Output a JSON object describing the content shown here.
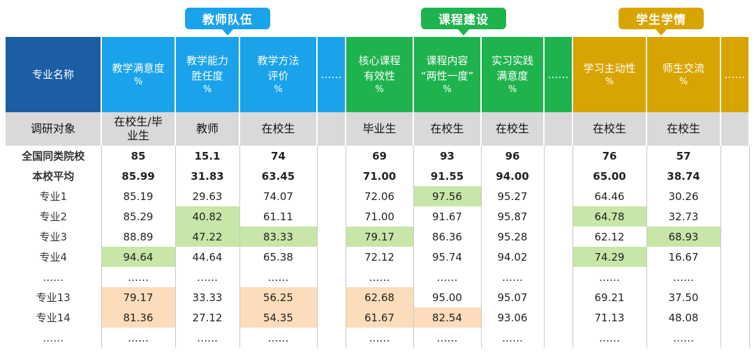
{
  "groups": [
    {
      "label": "教师队伍",
      "color": "#1aa3ea"
    },
    {
      "label": "课程建设",
      "color": "#1fb34e"
    },
    {
      "label": "学生学情",
      "color": "#d8a401"
    }
  ],
  "header": {
    "major_name": "专业名称",
    "cols": [
      {
        "l1": "教学满意度",
        "l2": "",
        "pct": "%"
      },
      {
        "l1": "教学能力",
        "l2": "胜任度",
        "pct": "%"
      },
      {
        "l1": "教学方法",
        "l2": "评价",
        "pct": "%"
      },
      {
        "l1": "……",
        "l2": "",
        "pct": ""
      },
      {
        "l1": "核心课程",
        "l2": "有效性",
        "pct": "%"
      },
      {
        "l1": "课程内容",
        "l2": "“两性一度”",
        "pct": "%"
      },
      {
        "l1": "实习实践",
        "l2": "满意度",
        "pct": "%"
      },
      {
        "l1": "……",
        "l2": "",
        "pct": ""
      },
      {
        "l1": "学习主动性",
        "l2": "",
        "pct": "%"
      },
      {
        "l1": "师生交流",
        "l2": "",
        "pct": "%"
      },
      {
        "l1": "……",
        "l2": "",
        "pct": ""
      }
    ]
  },
  "survey_row": {
    "label": "调研对象",
    "cells": [
      "在校生/毕业生",
      "教师",
      "在校生",
      "",
      "毕业生",
      "在校生",
      "在校生",
      "",
      "在校生",
      "在校生",
      ""
    ]
  },
  "rows": [
    {
      "label": "全国同类院校",
      "values": [
        "85",
        "15.1",
        "74",
        "",
        "69",
        "93",
        "96",
        "",
        "76",
        "57",
        ""
      ]
    },
    {
      "label": "本校平均",
      "values": [
        "85.99",
        "31.83",
        "63.45",
        "",
        "71.00",
        "91.55",
        "94.00",
        "",
        "65.00",
        "38.74",
        ""
      ]
    },
    {
      "label": "专业1",
      "values": [
        "85.19",
        "29.63",
        "74.07",
        "",
        "72.06",
        "97.56",
        "95.27",
        "",
        "64.46",
        "30.26",
        ""
      ]
    },
    {
      "label": "专业2",
      "values": [
        "85.29",
        "40.82",
        "61.11",
        "",
        "71.00",
        "91.67",
        "95.87",
        "",
        "64.78",
        "32.73",
        ""
      ]
    },
    {
      "label": "专业3",
      "values": [
        "88.89",
        "47.22",
        "83.33",
        "",
        "79.17",
        "86.36",
        "95.28",
        "",
        "62.12",
        "68.93",
        ""
      ]
    },
    {
      "label": "专业4",
      "values": [
        "94.64",
        "44.64",
        "65.38",
        "",
        "72.12",
        "95.74",
        "94.02",
        "",
        "74.29",
        "16.67",
        ""
      ]
    },
    {
      "label": "……",
      "values": [
        "……",
        "……",
        "……",
        "",
        "……",
        "……",
        "……",
        "",
        "……",
        "……",
        ""
      ]
    },
    {
      "label": "专业13",
      "values": [
        "79.17",
        "33.33",
        "56.25",
        "",
        "62.68",
        "95.00",
        "95.07",
        "",
        "69.21",
        "37.50",
        ""
      ]
    },
    {
      "label": "专业14",
      "values": [
        "81.36",
        "27.12",
        "54.35",
        "",
        "61.67",
        "82.54",
        "93.06",
        "",
        "71.13",
        "48.08",
        ""
      ]
    },
    {
      "label": "……",
      "values": [
        "……",
        "……",
        "……",
        "",
        "……",
        "……",
        "……",
        "",
        "……",
        "……",
        ""
      ]
    }
  ],
  "highlight_colors": {
    "high": "#c7e6a8",
    "low": "#fcdcbb"
  }
}
